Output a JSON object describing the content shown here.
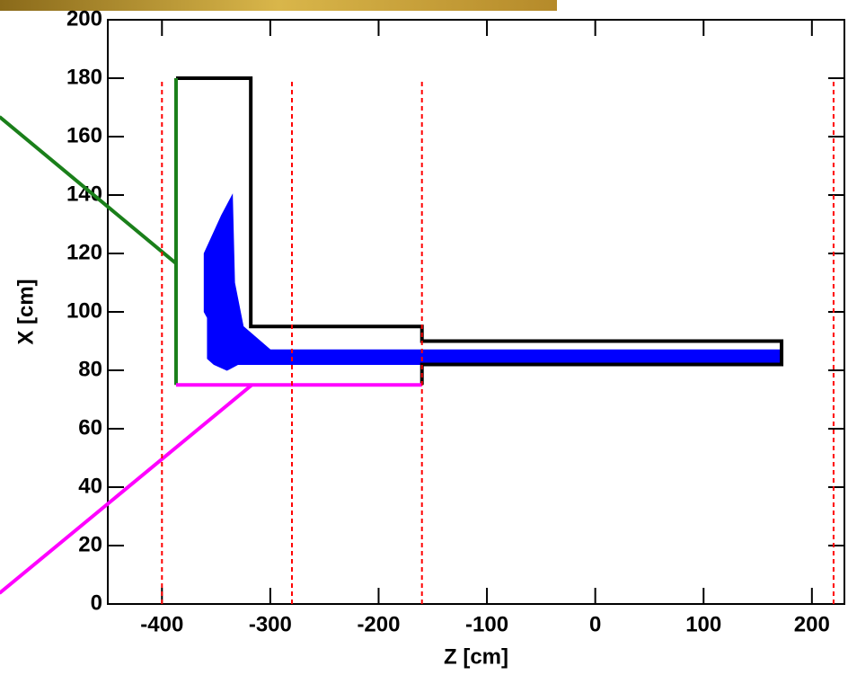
{
  "chart_data": {
    "type": "line",
    "x_label": "Z [cm]",
    "y_label": "X [cm]",
    "xlim": [
      -450,
      230
    ],
    "ylim": [
      0,
      200
    ],
    "xticks": [
      -400,
      -300,
      -200,
      -100,
      0,
      100,
      200
    ],
    "yticks": [
      0,
      20,
      40,
      60,
      80,
      100,
      120,
      140,
      160,
      180,
      200
    ],
    "series": [
      {
        "color": "#0000ff",
        "fill": true,
        "width": 1,
        "x": [
          -361,
          -345,
          -335,
          -333,
          -325,
          -300,
          -160,
          172,
          172,
          -330,
          -340,
          -352,
          -358,
          -358,
          -361
        ],
        "y": [
          120,
          133,
          140,
          110,
          95,
          87,
          87,
          87,
          82,
          82,
          80,
          82,
          84,
          98,
          100
        ]
      },
      {
        "color": "#000000",
        "width": 4,
        "x": [
          -387,
          -318,
          -318,
          -160,
          -160,
          172,
          172,
          -160,
          -160
        ],
        "y": [
          180,
          180,
          95,
          95,
          90,
          90,
          82,
          82,
          75
        ]
      },
      {
        "color": "#1a7f1a",
        "width": 4,
        "x": [
          -387,
          -387
        ],
        "y": [
          180,
          75
        ]
      },
      {
        "color": "#1a7f1a",
        "width": 4,
        "x": [
          -387,
          -550
        ],
        "y": [
          116.6,
          166.8
        ]
      },
      {
        "color": "#ff00ff",
        "width": 4,
        "x": [
          -387,
          -160
        ],
        "y": [
          75,
          75
        ]
      },
      {
        "color": "#ff00ff",
        "width": 4,
        "x": [
          -317,
          -550
        ],
        "y": [
          75,
          3.7
        ]
      },
      {
        "color": "#ff0000",
        "dash": true,
        "width": 2,
        "x": [
          -400,
          -400
        ],
        "y": [
          0,
          180
        ]
      },
      {
        "color": "#ff0000",
        "dash": true,
        "width": 2,
        "x": [
          -280,
          -280
        ],
        "y": [
          0,
          180
        ]
      },
      {
        "color": "#ff0000",
        "dash": true,
        "width": 2,
        "x": [
          -160,
          -160
        ],
        "y": [
          0,
          180
        ]
      },
      {
        "color": "#ff0000",
        "dash": true,
        "width": 2,
        "x": [
          220,
          220
        ],
        "y": [
          0,
          180
        ]
      }
    ]
  }
}
